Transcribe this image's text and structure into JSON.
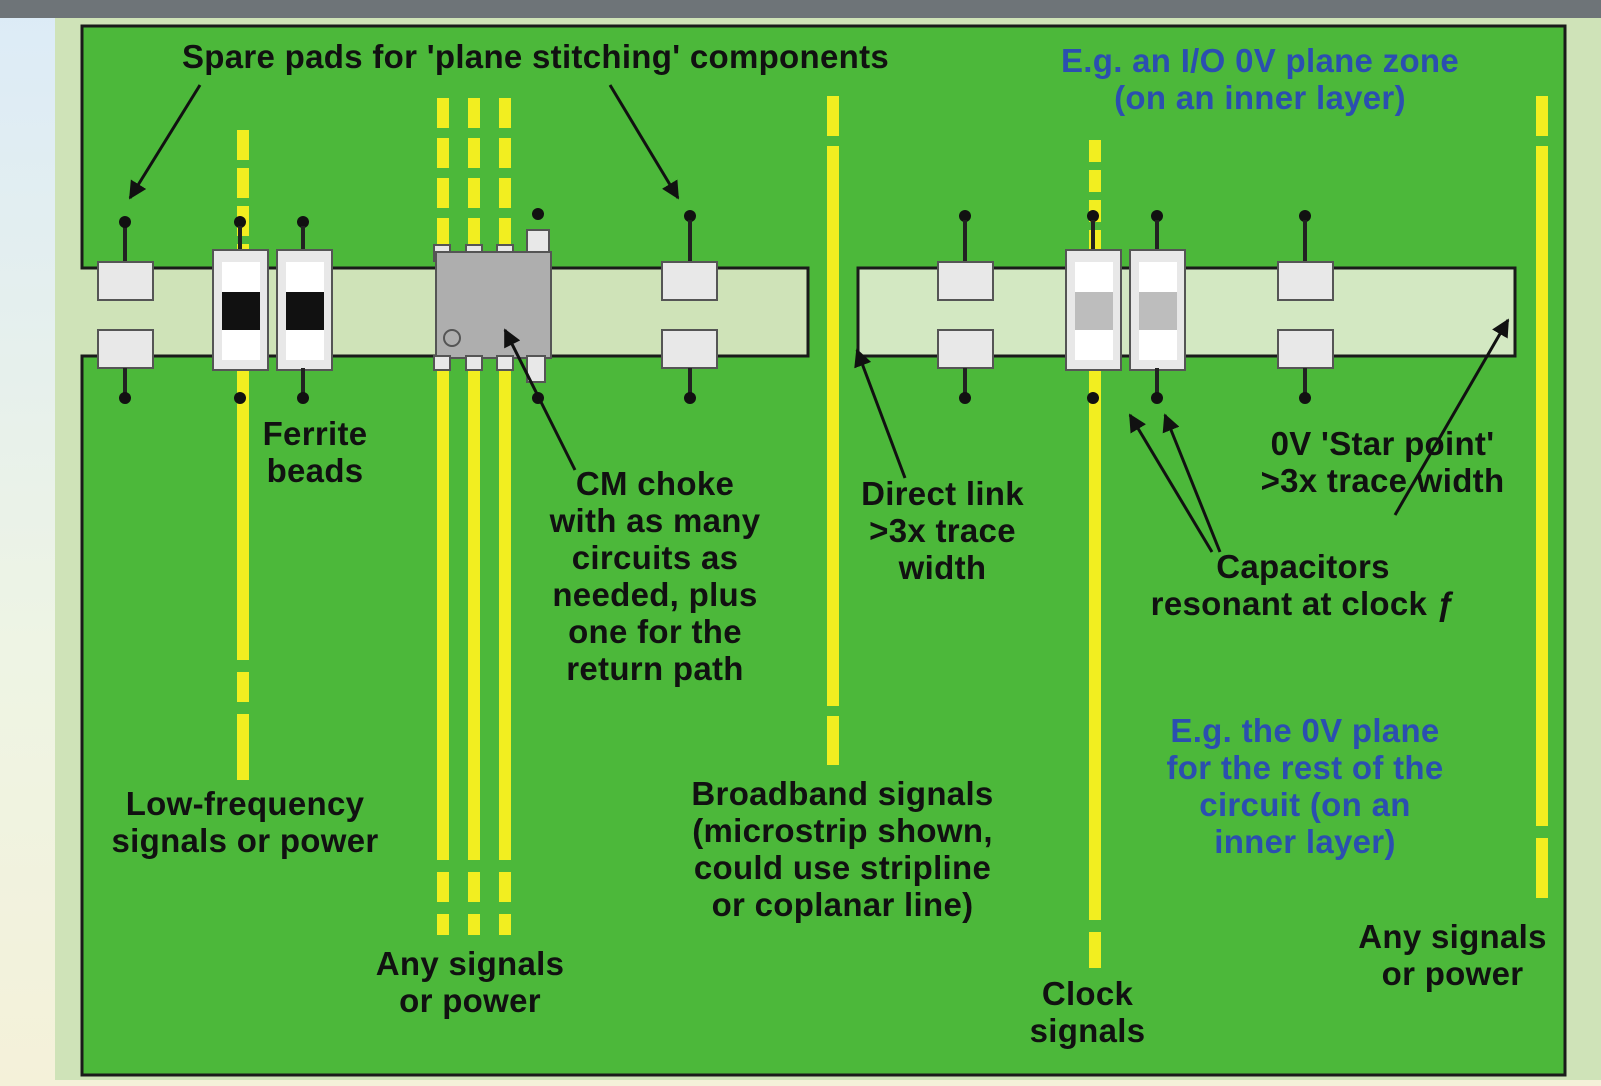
{
  "labels": {
    "spare_pads": "Spare pads for 'plane stitching' components",
    "io_zone": "E.g. an I/O 0V plane zone\n(on an inner layer)",
    "ferrite": "Ferrite\nbeads",
    "cm_choke": "CM choke\nwith as many\ncircuits as\nneeded, plus\none for the\nreturn path",
    "direct_link": "Direct link\n>3x trace\nwidth",
    "star_point": "0V 'Star point'\n>3x trace width",
    "capacitors": "Capacitors\nresonant at clock ƒ",
    "rest_plane": "E.g. the 0V plane\nfor the rest of the\ncircuit (on an\ninner layer)",
    "low_freq": "Low-frequency\nsignals or power",
    "any_signals_left": "Any signals\nor power",
    "broadband": "Broadband signals\n(microstrip shown,\ncould use stripline\nor coplanar line)",
    "clock": "Clock\nsignals",
    "any_signals_right": "Any signals\nor power"
  },
  "colors": {
    "board_green": "#4cb83a",
    "trace_yellow": "#f2ee20",
    "zone_fill": "#d3e8c2",
    "text_dark": "#111111",
    "text_blue": "#2b4fb0"
  }
}
